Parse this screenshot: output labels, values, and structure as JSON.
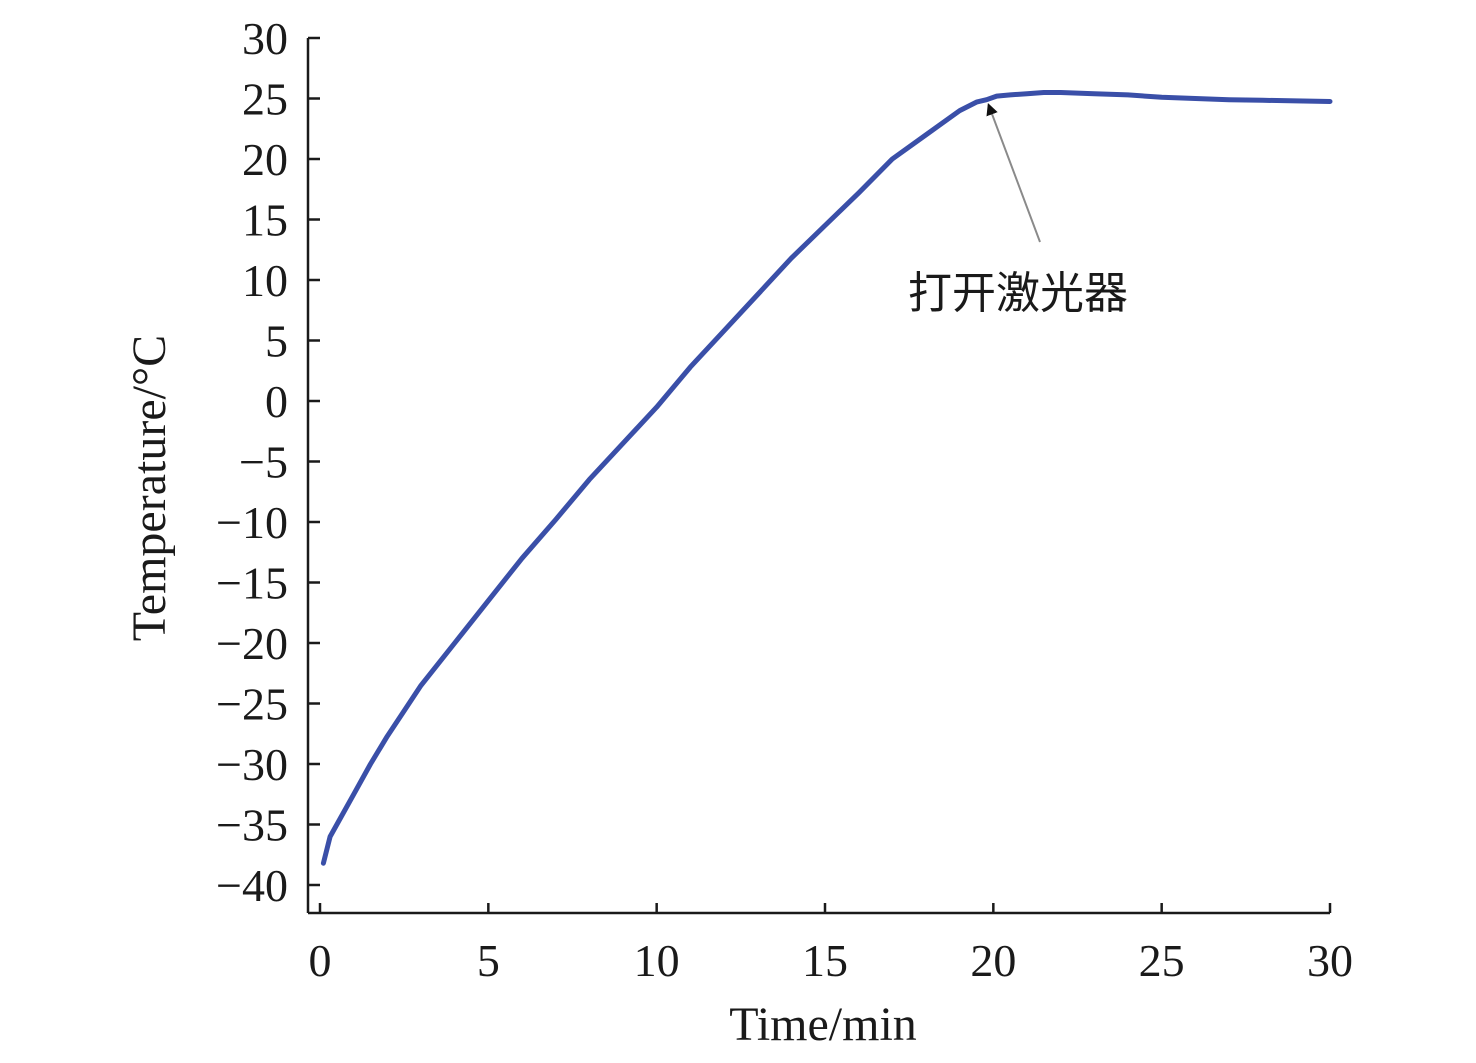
{
  "chart_data": {
    "type": "line",
    "title": "",
    "xlabel": "Time/min",
    "ylabel": "Temperature/°C",
    "xlim": [
      0,
      30
    ],
    "ylim": [
      -40,
      30
    ],
    "x_ticks": [
      0,
      5,
      10,
      15,
      20,
      25,
      30
    ],
    "y_ticks": [
      30,
      25,
      20,
      15,
      10,
      5,
      0,
      -5,
      -10,
      -15,
      -20,
      -25,
      -30,
      -35,
      -40
    ],
    "x_tick_labels": [
      "0",
      "5",
      "10",
      "15",
      "20",
      "25",
      "30"
    ],
    "y_tick_labels": [
      "30",
      "25",
      "20",
      "15",
      "10",
      "5",
      "0",
      "−5",
      "−10",
      "−15",
      "−20",
      "−25",
      "−30",
      "−35",
      "−40"
    ],
    "grid": false,
    "legend": "none",
    "series": [
      {
        "color": "#3a4fa8",
        "x": [
          0.1,
          0.3,
          0.6,
          1,
          1.5,
          2,
          2.5,
          3,
          4,
          5,
          6,
          7,
          8,
          9,
          10,
          11,
          12,
          13,
          14,
          15,
          16,
          17,
          18,
          19,
          19.5,
          19.8,
          20.1,
          20.5,
          21,
          21.5,
          22,
          23,
          24,
          25,
          26,
          27,
          28,
          29,
          30
        ],
        "y": [
          -38.2,
          -36,
          -34.5,
          -32.5,
          -30,
          -27.7,
          -25.6,
          -23.5,
          -20,
          -16.5,
          -13,
          -9.8,
          -6.5,
          -3.5,
          -0.5,
          2.8,
          5.8,
          8.8,
          11.8,
          14.5,
          17.2,
          20,
          22,
          24,
          24.7,
          24.9,
          25.2,
          25.3,
          25.4,
          25.5,
          25.5,
          25.4,
          25.3,
          25.1,
          25,
          24.9,
          24.85,
          24.8,
          24.75
        ]
      }
    ],
    "annotations": [
      {
        "text": "打开激光器",
        "x": 19.8,
        "y": 24.8
      }
    ]
  }
}
